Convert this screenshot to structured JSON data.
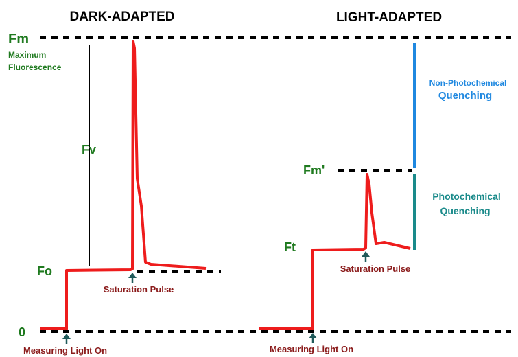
{
  "headings": {
    "dark": "DARK-ADAPTED",
    "light": "LIGHT-ADAPTED"
  },
  "levels": {
    "fm": "Fm",
    "fv": "Fv",
    "fo": "Fo",
    "zero": "0",
    "fm_prime": "Fm'",
    "ft": "Ft"
  },
  "annotations": {
    "max_line1": "Maximum",
    "max_line2": "Fluorescence",
    "npq_line1": "Non-Photochemical",
    "npq_line2": "Quenching",
    "pq_line1": "Photochemical",
    "pq_line2": "Quenching",
    "sat_pulse_left": "Saturation Pulse",
    "sat_pulse_right": "Saturation Pulse",
    "measuring_left": "Measuring Light On",
    "measuring_right": "Measuring Light On"
  },
  "colors": {
    "trace": "#ee1c1c",
    "level_label": "#1f7a1f",
    "npq": "#1f88e0",
    "pq": "#1a8a8a",
    "event_label": "#8a1a1a",
    "arrow": "#1f5a5a",
    "heading": "#000000"
  }
}
